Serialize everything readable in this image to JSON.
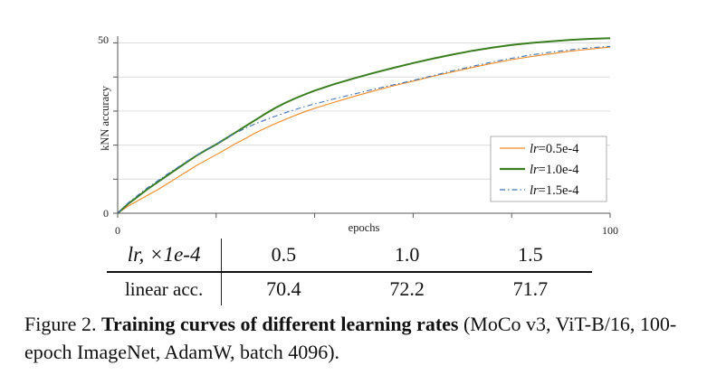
{
  "chart_data": {
    "type": "line",
    "xlabel": "epochs",
    "ylabel": "kNN accuracy",
    "xlim": [
      0,
      100
    ],
    "ylim": [
      0,
      52
    ],
    "x_ticks": [
      0,
      20,
      40,
      60,
      80,
      100
    ],
    "x_tick_labels": [
      "0",
      "",
      "",
      "",
      "",
      "100"
    ],
    "y_ticks": [
      0,
      10,
      20,
      30,
      40,
      50
    ],
    "y_tick_labels": [
      "0",
      "",
      "",
      "",
      "",
      "50"
    ],
    "grid": "horizontal",
    "legend_position": "lower-right",
    "series": [
      {
        "name": "lr=0.5e-4",
        "legend_prefix": "lr",
        "legend_suffix": "=0.5e-4",
        "color": "#f08a24",
        "style": "solid",
        "x": [
          0,
          2,
          4,
          6,
          8,
          10,
          12,
          14,
          16,
          18,
          20,
          22,
          24,
          26,
          28,
          30,
          32,
          34,
          36,
          38,
          40,
          44,
          48,
          52,
          56,
          60,
          64,
          68,
          72,
          76,
          80,
          84,
          88,
          92,
          96,
          100
        ],
        "y": [
          0,
          2,
          3.6,
          5.2,
          6.8,
          8.6,
          10.4,
          12.2,
          14.0,
          15.6,
          17.2,
          18.8,
          20.5,
          22.0,
          23.6,
          25.0,
          26.3,
          27.5,
          28.7,
          29.8,
          30.8,
          32.6,
          34.3,
          35.9,
          37.4,
          38.8,
          40.2,
          41.5,
          42.8,
          44.0,
          45.1,
          46.0,
          46.8,
          47.6,
          48.2,
          48.8
        ]
      },
      {
        "name": "lr=1.0e-4",
        "legend_prefix": "lr",
        "legend_suffix": "=1.0e-4",
        "color": "#3a7d1e",
        "style": "solid",
        "x": [
          0,
          2,
          4,
          6,
          8,
          10,
          12,
          14,
          16,
          18,
          20,
          22,
          24,
          26,
          28,
          30,
          32,
          34,
          36,
          38,
          40,
          44,
          48,
          52,
          56,
          60,
          64,
          68,
          72,
          76,
          80,
          84,
          88,
          92,
          96,
          100
        ],
        "y": [
          0,
          2.6,
          4.8,
          7.0,
          9.0,
          11.0,
          13.0,
          15.0,
          16.9,
          18.6,
          20.2,
          22.0,
          23.8,
          25.6,
          27.4,
          29.2,
          30.9,
          32.4,
          33.7,
          34.9,
          36.0,
          37.9,
          39.6,
          41.2,
          42.7,
          44.1,
          45.4,
          46.6,
          47.7,
          48.6,
          49.4,
          50.0,
          50.5,
          50.9,
          51.2,
          51.4
        ]
      },
      {
        "name": "lr=1.5e-4",
        "legend_prefix": "lr",
        "legend_suffix": "=1.5e-4",
        "color": "#3f74b8",
        "style": "dashdot",
        "x": [
          0,
          2,
          4,
          6,
          8,
          10,
          12,
          14,
          16,
          18,
          20,
          22,
          24,
          26,
          28,
          30,
          32,
          34,
          36,
          38,
          40,
          44,
          48,
          52,
          56,
          60,
          64,
          68,
          72,
          76,
          80,
          84,
          88,
          92,
          96,
          100
        ],
        "y": [
          0,
          2.9,
          5.2,
          7.4,
          9.4,
          11.4,
          13.3,
          15.2,
          17.0,
          18.7,
          20.3,
          22.0,
          23.6,
          25.0,
          26.3,
          27.4,
          28.5,
          29.5,
          30.4,
          31.3,
          32.1,
          33.6,
          35.0,
          36.4,
          37.7,
          39.0,
          40.4,
          41.8,
          43.1,
          44.4,
          45.5,
          46.5,
          47.3,
          48.0,
          48.6,
          49.0
        ]
      }
    ]
  },
  "table": {
    "header_label": "lr, ×1e-4",
    "header_values": [
      "0.5",
      "1.0",
      "1.5"
    ],
    "row_label": "linear acc.",
    "row_values": [
      "70.4",
      "72.2",
      "71.7"
    ]
  },
  "caption": {
    "prefix": "Figure 2.  ",
    "bold": "Training curves of different learning rates",
    "rest": " (MoCo v3, ViT-B/16, 100-epoch ImageNet, AdamW, batch 4096)."
  }
}
